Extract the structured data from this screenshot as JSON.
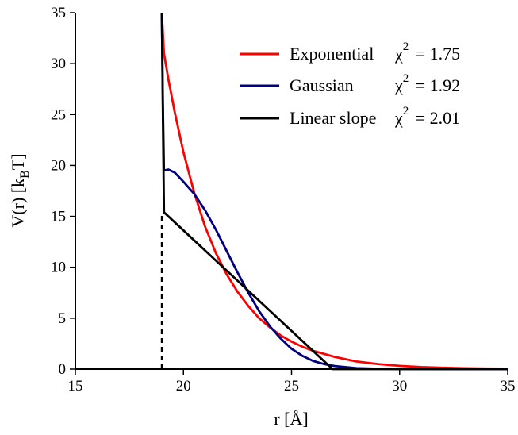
{
  "chart_data": {
    "type": "line",
    "xlabel": {
      "main": "r [Å]"
    },
    "ylabel": {
      "main": "V(r) [k",
      "sub": "B",
      "tail": "T]"
    },
    "xlim": [
      15,
      35
    ],
    "ylim": [
      0,
      35
    ],
    "x_ticks": [
      15,
      20,
      25,
      30,
      35
    ],
    "y_ticks": [
      0,
      5,
      10,
      15,
      20,
      25,
      30,
      35
    ],
    "grid": false,
    "legend_position": "top-right",
    "series": [
      {
        "name": "Exponential",
        "chi_label": "χ",
        "chi_sup": "2",
        "chi_value": "= 1.75",
        "color": "#ff0000",
        "style": "solid",
        "x": [
          19.0,
          19.05,
          19.1,
          19.3,
          19.6,
          20.0,
          20.5,
          21.0,
          21.5,
          22.0,
          22.5,
          23.0,
          23.5,
          24.0,
          24.5,
          25.0,
          25.5,
          26.0,
          27.0,
          28.0,
          29.0,
          30.0,
          31.0,
          32.0,
          33.0,
          34.0,
          35.0
        ],
        "y": [
          35.0,
          33.0,
          31.0,
          28.5,
          25.2,
          21.3,
          17.3,
          14.0,
          11.4,
          9.3,
          7.6,
          6.2,
          5.0,
          4.1,
          3.3,
          2.7,
          2.2,
          1.8,
          1.2,
          0.75,
          0.5,
          0.32,
          0.2,
          0.13,
          0.09,
          0.06,
          0.04
        ]
      },
      {
        "name": "Gaussian",
        "chi_label": "χ",
        "chi_sup": "2",
        "chi_value": "= 1.92",
        "color": "#000080",
        "style": "solid",
        "x": [
          19.0,
          19.05,
          19.1,
          19.3,
          19.6,
          20.0,
          20.5,
          21.0,
          21.5,
          22.0,
          22.5,
          23.0,
          23.5,
          24.0,
          24.5,
          25.0,
          25.5,
          26.0,
          26.5,
          27.0,
          28.0,
          29.0,
          30.0,
          32.0,
          35.0
        ],
        "y": [
          35.0,
          26.0,
          19.5,
          19.6,
          19.3,
          18.4,
          17.2,
          15.6,
          13.7,
          11.6,
          9.5,
          7.5,
          5.7,
          4.2,
          3.0,
          2.0,
          1.3,
          0.8,
          0.5,
          0.3,
          0.1,
          0.04,
          0.01,
          0.0,
          0.0
        ]
      },
      {
        "name": "Linear slope",
        "chi_label": "χ",
        "chi_sup": "2",
        "chi_value": "= 2.01",
        "color": "#000000",
        "style": "solid",
        "x": [
          19.0,
          19.05,
          19.1,
          26.9,
          35.0
        ],
        "y": [
          35.0,
          25.0,
          15.4,
          0.0,
          0.0
        ]
      }
    ],
    "annotations": [
      {
        "type": "vertical-dashed-line",
        "x": 19.0,
        "y_range": [
          0,
          15.4
        ],
        "color": "#000000"
      }
    ]
  }
}
